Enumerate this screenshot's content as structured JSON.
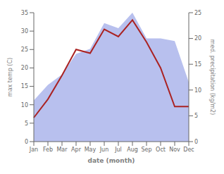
{
  "chart_data": {
    "type": "line",
    "xlabel": "date (month)",
    "ylabel": "max temp (C)",
    "y2label": "med. precipitation (kg/m2)",
    "categories": [
      "Jan",
      "Feb",
      "Mar",
      "Apr",
      "May",
      "Jun",
      "Jul",
      "Aug",
      "Sep",
      "Oct",
      "Nov",
      "Dec"
    ],
    "series": [
      {
        "type": "area",
        "color": "#b8c0ee",
        "axis": "y2",
        "values": [
          8,
          11,
          13,
          17,
          18,
          23,
          22,
          25,
          20,
          20,
          19.5,
          11.5
        ]
      },
      {
        "type": "line",
        "color": "#aa2222",
        "values": [
          6.5,
          11.5,
          18.0,
          25.0,
          24.0,
          30.5,
          28.5,
          33.0,
          27.0,
          20.0,
          9.5,
          9.5
        ]
      }
    ],
    "ylim": [
      0,
      35
    ],
    "yticks": [
      0,
      5,
      10,
      15,
      20,
      25,
      30,
      35
    ],
    "y2lim": [
      0,
      25
    ],
    "y2ticks": [
      0,
      5,
      10,
      15,
      20,
      25
    ],
    "grid": false
  }
}
